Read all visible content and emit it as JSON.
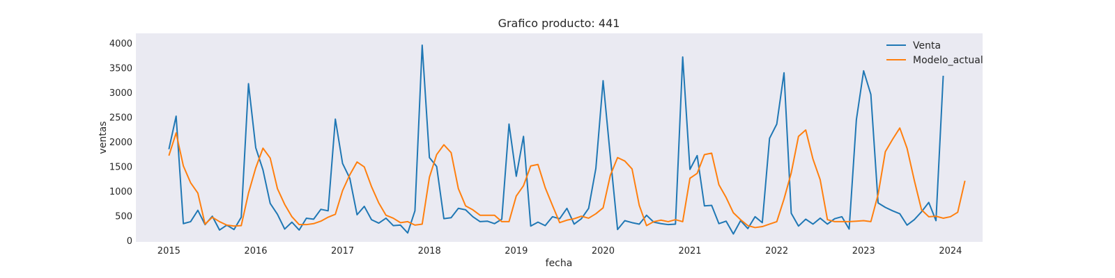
{
  "chart_data": {
    "type": "line",
    "title": "Grafico producto: 441",
    "xlabel": "fecha",
    "ylabel": "ventas",
    "xlim": [
      2014.62,
      2024.37
    ],
    "ylim": [
      -30,
      4200
    ],
    "x_ticks": [
      2015,
      2016,
      2017,
      2018,
      2019,
      2020,
      2021,
      2022,
      2023,
      2024
    ],
    "y_ticks": [
      0,
      500,
      1000,
      1500,
      2000,
      2500,
      3000,
      3500,
      4000
    ],
    "grid": false,
    "legend_position": "top-right",
    "background": "#eaeaf2",
    "series": [
      {
        "name": "Venta",
        "color": "#1f77b4",
        "values": [
          1850,
          2520,
          340,
          380,
          610,
          320,
          490,
          210,
          310,
          220,
          470,
          3180,
          1880,
          1430,
          750,
          530,
          230,
          370,
          210,
          450,
          430,
          630,
          600,
          2460,
          1560,
          1260,
          520,
          690,
          420,
          350,
          450,
          300,
          310,
          150,
          600,
          3960,
          1680,
          1500,
          440,
          460,
          650,
          620,
          480,
          380,
          390,
          340,
          430,
          2360,
          1300,
          2110,
          290,
          370,
          300,
          480,
          440,
          650,
          330,
          440,
          650,
          1460,
          3240,
          1700,
          220,
          400,
          360,
          330,
          510,
          370,
          340,
          320,
          330,
          3720,
          1440,
          1720,
          700,
          710,
          340,
          390,
          130,
          400,
          240,
          480,
          360,
          2070,
          2360,
          3400,
          550,
          290,
          430,
          330,
          450,
          330,
          440,
          480,
          230,
          2450,
          3440,
          2960,
          760,
          670,
          600,
          540,
          310,
          420,
          580,
          770,
          400,
          3340
        ]
      },
      {
        "name": "Modelo_actual",
        "color": "#ff7f0e",
        "values": [
          1720,
          2180,
          1510,
          1170,
          960,
          330,
          470,
          380,
          310,
          290,
          300,
          960,
          1470,
          1870,
          1670,
          1050,
          730,
          480,
          320,
          320,
          340,
          390,
          470,
          530,
          1010,
          1330,
          1590,
          1490,
          1090,
          760,
          510,
          450,
          360,
          380,
          310,
          330,
          1280,
          1740,
          1940,
          1780,
          1050,
          700,
          620,
          510,
          510,
          510,
          380,
          380,
          900,
          1110,
          1510,
          1540,
          1070,
          710,
          360,
          410,
          440,
          490,
          450,
          540,
          660,
          1320,
          1680,
          1610,
          1450,
          710,
          300,
          380,
          410,
          380,
          420,
          380,
          1260,
          1360,
          1740,
          1770,
          1130,
          870,
          560,
          420,
          300,
          260,
          280,
          330,
          380,
          840,
          1370,
          2110,
          2240,
          1650,
          1230,
          420,
          380,
          380,
          380,
          390,
          400,
          380,
          930,
          1800,
          2050,
          2280,
          1870,
          1220,
          620,
          480,
          490,
          450,
          480,
          570,
          1210
        ]
      }
    ]
  }
}
